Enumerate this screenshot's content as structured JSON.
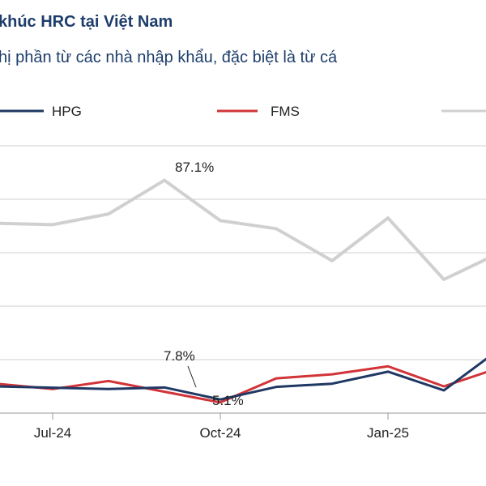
{
  "header": {
    "title": "khúc HRC tại Việt Nam",
    "subtitle": "hị phần từ các nhà nhập khẩu, đặc biệt là từ cá"
  },
  "colors": {
    "hpg": "#1f3864",
    "fms": "#d13438",
    "third": "#d0d0d0",
    "grid": "#cfcfcf",
    "text": "#1d3d6b"
  },
  "chart_data": {
    "type": "line",
    "x": [
      "2024-06-01",
      "2024-07-01",
      "2024-08-01",
      "2024-09-01",
      "2024-10-01",
      "2024-11-01",
      "2024-12-01",
      "2025-01-01",
      "2025-02-01",
      "2025-03-01"
    ],
    "xticks": [
      "Jul-24",
      "Oct-24",
      "Jan-25"
    ],
    "ylim": [
      0,
      100
    ],
    "grid": true,
    "legend": "top",
    "series": [
      {
        "name": "HPG",
        "color": "#1f3864",
        "values": [
          10,
          9.5,
          9.0,
          9.6,
          5.1,
          9.8,
          11.0,
          15.5,
          8.5,
          24.0
        ]
      },
      {
        "name": "FMS",
        "color": "#d13438",
        "values": [
          11,
          9.0,
          12.0,
          8.0,
          4.0,
          13.0,
          14.5,
          17.5,
          10.0,
          17.0
        ]
      },
      {
        "name": "",
        "color": "#d0d0d0",
        "values": [
          71,
          70.5,
          74.5,
          87.1,
          72,
          69,
          57,
          73,
          50,
          60
        ]
      }
    ],
    "annotations": [
      "87.1%",
      "7.8%",
      "5.1%"
    ]
  }
}
